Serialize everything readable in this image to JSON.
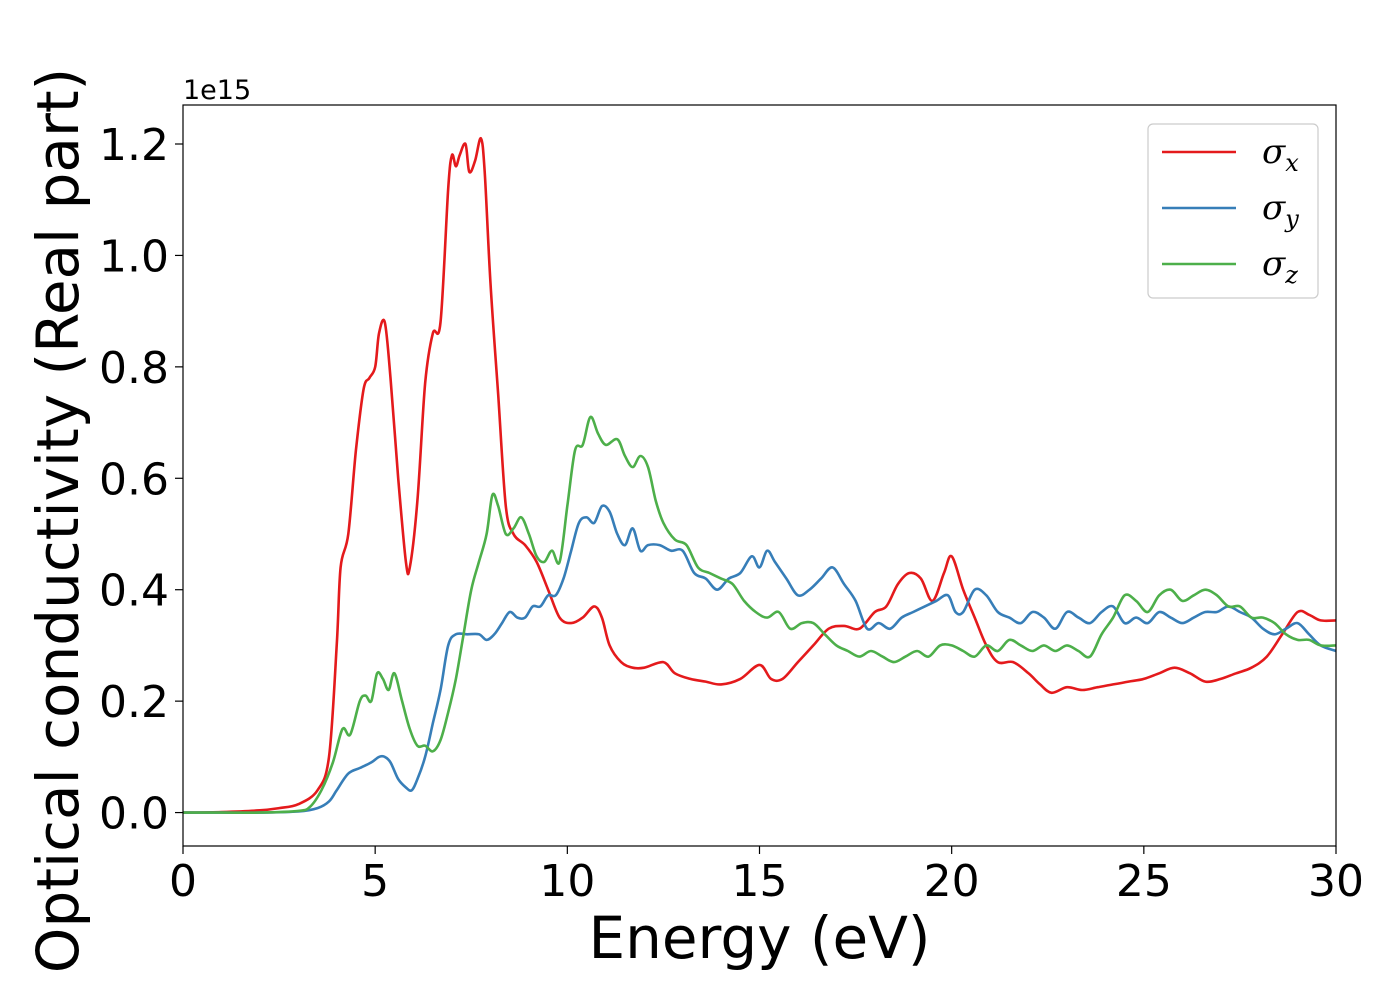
{
  "chart_data": {
    "type": "line",
    "xlabel": "Energy (eV)",
    "ylabel": "Optical conductivity (Real part)",
    "y_offset_label": "1e15",
    "xlim": [
      0,
      30
    ],
    "ylim": [
      -0.06,
      1.27
    ],
    "x_ticks": [
      0,
      5,
      10,
      15,
      20,
      25,
      30
    ],
    "x_tick_labels": [
      "0",
      "5",
      "10",
      "15",
      "20",
      "25",
      "30"
    ],
    "y_ticks": [
      0.0,
      0.2,
      0.4,
      0.6,
      0.8,
      1.0,
      1.2
    ],
    "y_tick_labels": [
      "0.0",
      "0.2",
      "0.4",
      "0.6",
      "0.8",
      "1.0",
      "1.2"
    ],
    "grid": false,
    "legend_position": "top-right",
    "series": [
      {
        "name": "σ",
        "subscript": "x",
        "color": "#e41a1c",
        "x": [
          0,
          1,
          2,
          2.5,
          3,
          3.5,
          3.8,
          4.0,
          4.1,
          4.3,
          4.5,
          4.7,
          4.85,
          5.0,
          5.1,
          5.25,
          5.4,
          5.6,
          5.8,
          5.9,
          6.1,
          6.3,
          6.5,
          6.7,
          6.9,
          7.0,
          7.1,
          7.2,
          7.35,
          7.45,
          7.6,
          7.75,
          7.85,
          8.0,
          8.2,
          8.4,
          8.6,
          8.9,
          9.2,
          9.5,
          9.8,
          10.1,
          10.4,
          10.7,
          10.9,
          11.1,
          11.4,
          11.7,
          12.0,
          12.5,
          12.8,
          13.2,
          13.6,
          14.0,
          14.5,
          15.0,
          15.3,
          15.6,
          16.0,
          16.4,
          16.8,
          17.2,
          17.6,
          18.0,
          18.3,
          18.6,
          18.9,
          19.2,
          19.5,
          19.8,
          20.0,
          20.3,
          20.6,
          20.9,
          21.2,
          21.6,
          22.0,
          22.3,
          22.6,
          23.0,
          23.4,
          23.8,
          24.2,
          24.6,
          25.0,
          25.4,
          25.8,
          26.2,
          26.6,
          27.0,
          27.4,
          27.8,
          28.2,
          28.6,
          29.0,
          29.3,
          29.6,
          30.0
        ],
        "values": [
          0,
          0.001,
          0.004,
          0.008,
          0.015,
          0.04,
          0.1,
          0.3,
          0.44,
          0.5,
          0.65,
          0.76,
          0.78,
          0.8,
          0.86,
          0.88,
          0.78,
          0.6,
          0.45,
          0.44,
          0.56,
          0.77,
          0.86,
          0.88,
          1.12,
          1.18,
          1.16,
          1.18,
          1.2,
          1.15,
          1.17,
          1.21,
          1.15,
          0.95,
          0.75,
          0.55,
          0.5,
          0.48,
          0.45,
          0.4,
          0.35,
          0.34,
          0.35,
          0.37,
          0.35,
          0.3,
          0.27,
          0.26,
          0.26,
          0.27,
          0.25,
          0.24,
          0.235,
          0.23,
          0.24,
          0.265,
          0.24,
          0.24,
          0.27,
          0.3,
          0.33,
          0.335,
          0.33,
          0.36,
          0.37,
          0.41,
          0.43,
          0.42,
          0.38,
          0.43,
          0.46,
          0.4,
          0.35,
          0.3,
          0.27,
          0.27,
          0.25,
          0.23,
          0.215,
          0.225,
          0.22,
          0.225,
          0.23,
          0.235,
          0.24,
          0.25,
          0.26,
          0.25,
          0.235,
          0.24,
          0.25,
          0.26,
          0.28,
          0.32,
          0.36,
          0.355,
          0.345,
          0.345
        ]
      },
      {
        "name": "σ",
        "subscript": "y",
        "color": "#377eb8",
        "x": [
          0,
          1,
          2,
          3,
          3.5,
          3.8,
          4.0,
          4.3,
          4.6,
          4.9,
          5.1,
          5.25,
          5.4,
          5.6,
          5.8,
          5.95,
          6.1,
          6.3,
          6.5,
          6.7,
          6.9,
          7.1,
          7.4,
          7.7,
          7.9,
          8.1,
          8.3,
          8.5,
          8.7,
          8.9,
          9.1,
          9.3,
          9.5,
          9.7,
          9.9,
          10.1,
          10.3,
          10.5,
          10.7,
          10.9,
          11.1,
          11.3,
          11.5,
          11.7,
          11.9,
          12.1,
          12.4,
          12.7,
          13.0,
          13.3,
          13.6,
          13.9,
          14.2,
          14.5,
          14.8,
          15.0,
          15.2,
          15.4,
          15.7,
          16.0,
          16.3,
          16.6,
          16.9,
          17.2,
          17.5,
          17.8,
          18.1,
          18.4,
          18.7,
          19.0,
          19.3,
          19.6,
          19.9,
          20.1,
          20.3,
          20.6,
          20.9,
          21.2,
          21.5,
          21.8,
          22.1,
          22.4,
          22.7,
          23.0,
          23.3,
          23.6,
          23.9,
          24.2,
          24.5,
          24.8,
          25.1,
          25.4,
          25.7,
          26.0,
          26.3,
          26.6,
          26.9,
          27.2,
          27.5,
          27.8,
          28.1,
          28.4,
          28.7,
          29.0,
          29.3,
          29.6,
          30.0
        ],
        "values": [
          0,
          0,
          0,
          0.002,
          0.008,
          0.02,
          0.04,
          0.07,
          0.08,
          0.09,
          0.1,
          0.1,
          0.09,
          0.06,
          0.045,
          0.04,
          0.06,
          0.1,
          0.16,
          0.22,
          0.3,
          0.32,
          0.32,
          0.32,
          0.31,
          0.32,
          0.34,
          0.36,
          0.35,
          0.35,
          0.37,
          0.37,
          0.39,
          0.39,
          0.42,
          0.47,
          0.52,
          0.53,
          0.52,
          0.55,
          0.54,
          0.5,
          0.48,
          0.51,
          0.47,
          0.48,
          0.48,
          0.47,
          0.47,
          0.43,
          0.42,
          0.4,
          0.42,
          0.43,
          0.46,
          0.44,
          0.47,
          0.45,
          0.42,
          0.39,
          0.4,
          0.42,
          0.44,
          0.41,
          0.38,
          0.33,
          0.34,
          0.33,
          0.35,
          0.36,
          0.37,
          0.38,
          0.39,
          0.36,
          0.36,
          0.4,
          0.39,
          0.36,
          0.35,
          0.34,
          0.36,
          0.35,
          0.33,
          0.36,
          0.35,
          0.34,
          0.36,
          0.37,
          0.34,
          0.35,
          0.34,
          0.36,
          0.35,
          0.34,
          0.35,
          0.36,
          0.36,
          0.37,
          0.36,
          0.35,
          0.33,
          0.32,
          0.33,
          0.34,
          0.32,
          0.3,
          0.29
        ]
      },
      {
        "name": "σ",
        "subscript": "z",
        "color": "#4daf4a",
        "x": [
          0,
          1,
          2,
          3,
          3.3,
          3.6,
          3.9,
          4.15,
          4.35,
          4.6,
          4.75,
          4.9,
          5.05,
          5.2,
          5.35,
          5.5,
          5.7,
          5.9,
          6.1,
          6.3,
          6.5,
          6.7,
          6.9,
          7.1,
          7.3,
          7.5,
          7.7,
          7.9,
          8.05,
          8.2,
          8.4,
          8.6,
          8.8,
          9.0,
          9.2,
          9.4,
          9.6,
          9.8,
          10.0,
          10.2,
          10.4,
          10.6,
          10.8,
          11.0,
          11.3,
          11.5,
          11.7,
          11.9,
          12.1,
          12.3,
          12.5,
          12.8,
          13.1,
          13.4,
          13.7,
          14.0,
          14.3,
          14.6,
          14.9,
          15.2,
          15.5,
          15.8,
          16.1,
          16.4,
          16.7,
          17.0,
          17.3,
          17.6,
          17.9,
          18.2,
          18.5,
          18.8,
          19.1,
          19.4,
          19.7,
          20.0,
          20.3,
          20.6,
          20.9,
          21.2,
          21.5,
          21.8,
          22.1,
          22.4,
          22.7,
          23.0,
          23.3,
          23.6,
          23.9,
          24.2,
          24.5,
          24.8,
          25.1,
          25.4,
          25.7,
          26.0,
          26.3,
          26.6,
          26.9,
          27.2,
          27.5,
          27.8,
          28.1,
          28.4,
          28.7,
          29.0,
          29.3,
          29.6,
          30.0
        ],
        "values": [
          0,
          0,
          0,
          0.003,
          0.01,
          0.04,
          0.09,
          0.15,
          0.14,
          0.2,
          0.21,
          0.2,
          0.25,
          0.24,
          0.22,
          0.25,
          0.2,
          0.15,
          0.12,
          0.12,
          0.11,
          0.13,
          0.18,
          0.24,
          0.32,
          0.4,
          0.45,
          0.5,
          0.57,
          0.55,
          0.5,
          0.51,
          0.53,
          0.5,
          0.46,
          0.45,
          0.47,
          0.45,
          0.55,
          0.65,
          0.66,
          0.71,
          0.68,
          0.66,
          0.67,
          0.64,
          0.62,
          0.64,
          0.62,
          0.56,
          0.52,
          0.49,
          0.48,
          0.44,
          0.43,
          0.42,
          0.41,
          0.38,
          0.36,
          0.35,
          0.36,
          0.33,
          0.34,
          0.34,
          0.32,
          0.3,
          0.29,
          0.28,
          0.29,
          0.28,
          0.27,
          0.28,
          0.29,
          0.28,
          0.3,
          0.3,
          0.29,
          0.28,
          0.3,
          0.29,
          0.31,
          0.3,
          0.29,
          0.3,
          0.29,
          0.3,
          0.29,
          0.28,
          0.32,
          0.35,
          0.39,
          0.38,
          0.36,
          0.39,
          0.4,
          0.38,
          0.39,
          0.4,
          0.39,
          0.37,
          0.37,
          0.35,
          0.35,
          0.34,
          0.32,
          0.31,
          0.31,
          0.3,
          0.3
        ]
      }
    ]
  }
}
